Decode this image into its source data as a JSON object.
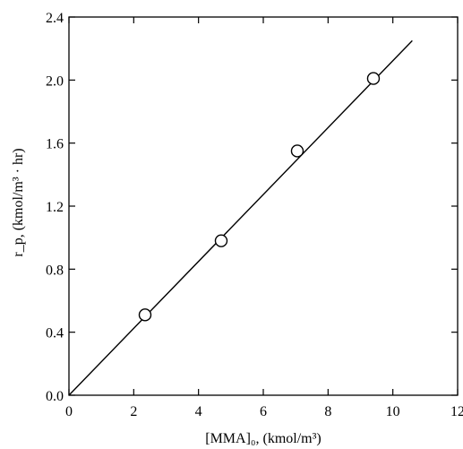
{
  "chart_data": {
    "type": "scatter",
    "xlabel": "[MMA]₀, (kmol/m³)",
    "ylabel": "r_p, (kmol/m³ · hr)",
    "xlim": [
      0,
      12
    ],
    "ylim": [
      0,
      2.4
    ],
    "x_ticks": [
      "0",
      "2",
      "4",
      "6",
      "8",
      "10",
      "12"
    ],
    "y_ticks": [
      "0.0",
      "0.4",
      "0.8",
      "1.2",
      "1.6",
      "2.0",
      "2.4"
    ],
    "grid": false,
    "series": [
      {
        "marker": "open-circle",
        "points": [
          {
            "x": 2.35,
            "y": 0.51
          },
          {
            "x": 4.7,
            "y": 0.98
          },
          {
            "x": 7.05,
            "y": 1.55
          },
          {
            "x": 9.4,
            "y": 2.01
          }
        ]
      }
    ],
    "fit_line": {
      "x": [
        0,
        10.6
      ],
      "y": [
        0,
        2.25
      ]
    }
  }
}
